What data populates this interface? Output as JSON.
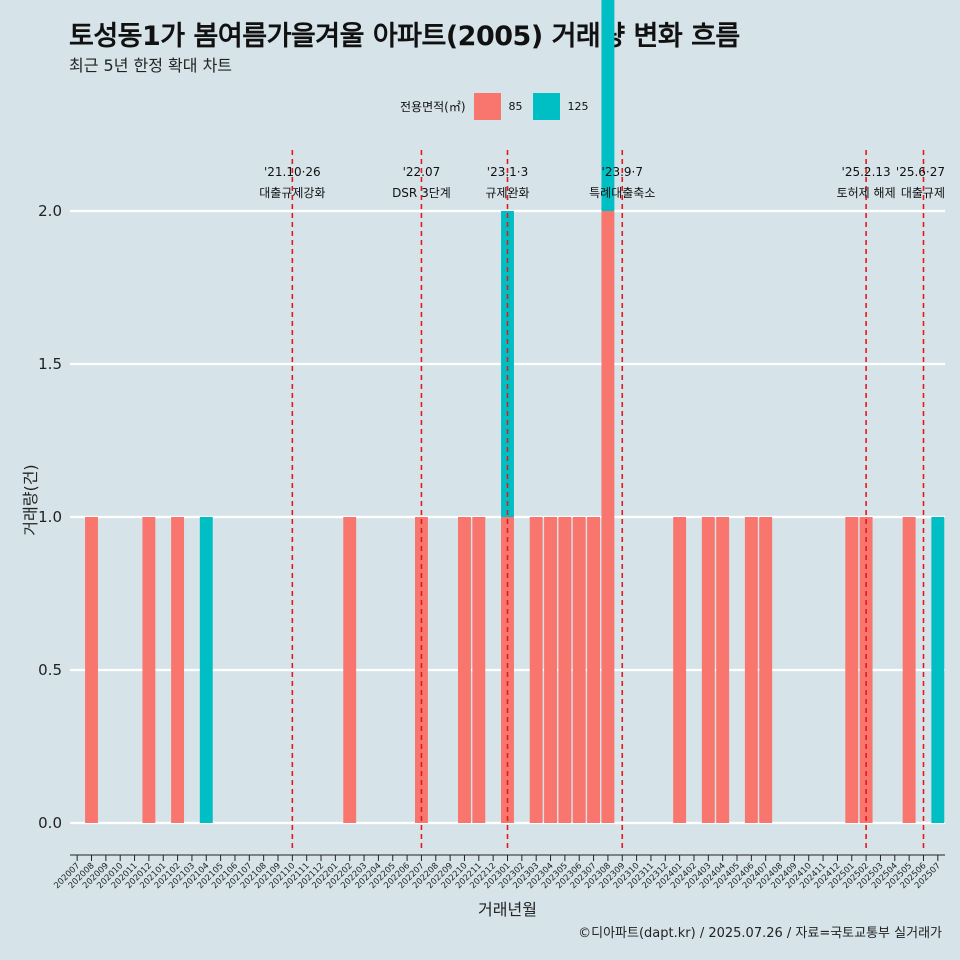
{
  "title": "토성동1가 봄여름가을겨울 아파트(2005) 거래량 변화 흐름",
  "subtitle": "최근 5년 한정 확대 차트",
  "caption": "©디아파트(dapt.kr) / 2025.07.26 / 자료=국토교통부 실거래가",
  "legend": {
    "title": "전용면적(㎡)",
    "items": [
      {
        "label": "85",
        "color": "#f8766d"
      },
      {
        "label": "125",
        "color": "#00bfc4"
      }
    ]
  },
  "chart_data": {
    "type": "bar",
    "stacked": true,
    "xlabel": "거래년월",
    "ylabel": "거래량(건)",
    "ylim": [
      0,
      2
    ],
    "yticks": [
      0.0,
      0.5,
      1.0,
      1.5,
      2.0
    ],
    "ytick_labels": [
      "0.0",
      "0.5",
      "1.0",
      "1.5",
      "2.0"
    ],
    "grid": true,
    "categories": [
      "202007",
      "202008",
      "202009",
      "202010",
      "202011",
      "202012",
      "202101",
      "202102",
      "202103",
      "202104",
      "202105",
      "202106",
      "202107",
      "202108",
      "202109",
      "202110",
      "202111",
      "202112",
      "202201",
      "202202",
      "202203",
      "202204",
      "202205",
      "202206",
      "202207",
      "202208",
      "202209",
      "202210",
      "202211",
      "202212",
      "202301",
      "202302",
      "202303",
      "202304",
      "202305",
      "202306",
      "202307",
      "202308",
      "202309",
      "202310",
      "202311",
      "202312",
      "202401",
      "202402",
      "202403",
      "202404",
      "202405",
      "202406",
      "202407",
      "202408",
      "202409",
      "202410",
      "202411",
      "202412",
      "202501",
      "202502",
      "202503",
      "202504",
      "202505",
      "202506",
      "202507"
    ],
    "series": [
      {
        "name": "85",
        "color": "#f8766d",
        "values": {
          "202008": 1,
          "202012": 1,
          "202102": 1,
          "202202": 1,
          "202207": 1,
          "202210": 1,
          "202211": 1,
          "202301": 1,
          "202303": 1,
          "202304": 1,
          "202305": 1,
          "202306": 1,
          "202307": 1,
          "202308": 2,
          "202401": 1,
          "202403": 1,
          "202404": 1,
          "202406": 1,
          "202407": 1,
          "202501": 1,
          "202502": 1,
          "202505": 1
        }
      },
      {
        "name": "125",
        "color": "#00bfc4",
        "values": {
          "202104": 1,
          "202301": 1,
          "202308": 1,
          "202507": 1
        }
      }
    ],
    "events": [
      {
        "line1": "'21.10·26",
        "line2": "대출규제강화",
        "x": "202110"
      },
      {
        "line1": "'22.07",
        "line2": "DSR 3단계",
        "x": "202207"
      },
      {
        "line1": "'23.1·3",
        "line2": "규제완화",
        "x": "202301"
      },
      {
        "line1": "'23.9·7",
        "line2": "특례대출축소",
        "x": "202309"
      },
      {
        "line1": "'25.2.13",
        "line2": "토허제 해제",
        "x": "202502"
      },
      {
        "line1": "'25.6·27",
        "line2": "대출규제",
        "x": "202506"
      }
    ]
  }
}
